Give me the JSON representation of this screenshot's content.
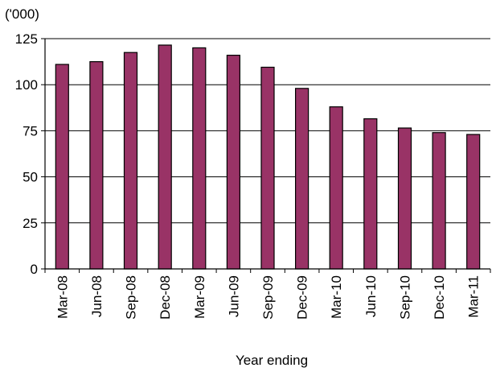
{
  "chart_data": {
    "type": "bar",
    "unit_label": "('000)",
    "xlabel": "Year ending",
    "ylabel": "",
    "categories": [
      "Mar-08",
      "Jun-08",
      "Sep-08",
      "Dec-08",
      "Mar-09",
      "Jun-09",
      "Sep-09",
      "Dec-09",
      "Mar-10",
      "Jun-10",
      "Sep-10",
      "Dec-10",
      "Mar-11"
    ],
    "values": [
      111,
      112.5,
      117.5,
      121.5,
      120,
      116,
      109.5,
      98,
      88,
      81.5,
      76.5,
      74,
      73
    ],
    "ylim": [
      0,
      125
    ],
    "yticks": [
      0,
      25,
      50,
      75,
      100,
      125
    ],
    "grid": true,
    "legend": "none",
    "colors": {
      "bar": "#993366",
      "bar_outline": "#000000",
      "grid": "#000000"
    }
  }
}
